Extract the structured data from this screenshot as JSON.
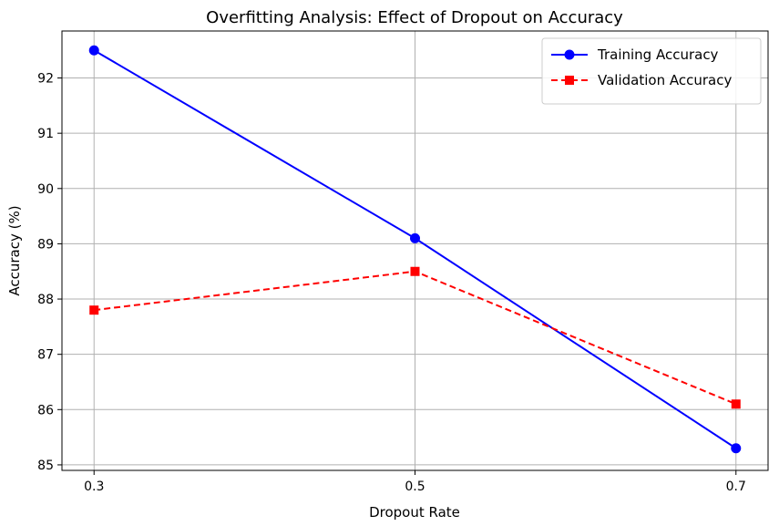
{
  "chart_data": {
    "type": "line",
    "title": "Overfitting Analysis: Effect of Dropout on Accuracy",
    "xlabel": "Dropout Rate",
    "ylabel": "Accuracy (%)",
    "x": [
      0.3,
      0.5,
      0.7
    ],
    "x_tick_labels": [
      "0.3",
      "0.5",
      "0.7"
    ],
    "y_ticks": [
      85,
      86,
      87,
      88,
      89,
      90,
      91,
      92
    ],
    "xlim": [
      0.28,
      0.72
    ],
    "ylim": [
      84.9,
      92.85
    ],
    "grid": true,
    "legend_position": "top-right",
    "series": [
      {
        "name": "Training Accuracy",
        "values": [
          92.5,
          89.1,
          85.3
        ],
        "color": "#0000ff",
        "line_style": "solid",
        "marker": "circle"
      },
      {
        "name": "Validation Accuracy",
        "values": [
          87.8,
          88.5,
          86.1
        ],
        "color": "#ff0000",
        "line_style": "dashed",
        "marker": "square"
      }
    ]
  }
}
